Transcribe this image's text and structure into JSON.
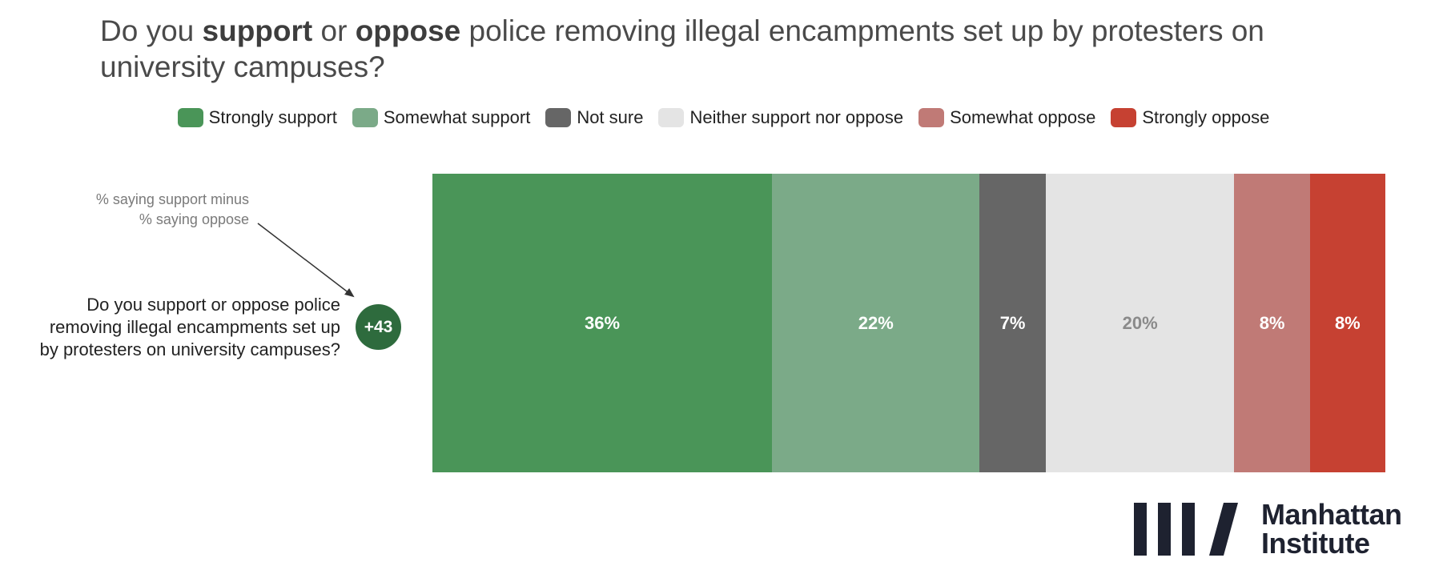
{
  "title": {
    "prefix": "Do you ",
    "bold1": "support",
    "mid": " or ",
    "bold2": "oppose",
    "suffix": " police removing illegal encampments set up by protesters on university campuses?"
  },
  "note": {
    "line1": "% saying support minus",
    "line2": "% saying oppose"
  },
  "question": {
    "line1": "Do you support or oppose police",
    "line2": "removing illegal encampments set up",
    "line3": "by protesters on university campuses?"
  },
  "net_label": "+43",
  "logo": {
    "line1": "Manhattan",
    "line2": "Institute"
  },
  "chart_data": {
    "type": "bar",
    "orientation": "horizontal-stacked",
    "categories": [
      "Do you support or oppose police removing illegal encampments set up by protesters on university campuses?"
    ],
    "series": [
      {
        "name": "Strongly support",
        "values": [
          36
        ],
        "label": "36%",
        "color": "#4a9558",
        "label_color": "#ffffff"
      },
      {
        "name": "Somewhat support",
        "values": [
          22
        ],
        "label": "22%",
        "color": "#7baa88",
        "label_color": "#ffffff"
      },
      {
        "name": "Not sure",
        "values": [
          7
        ],
        "label": "7%",
        "color": "#666666",
        "label_color": "#ffffff"
      },
      {
        "name": "Neither support nor oppose",
        "values": [
          20
        ],
        "label": "20%",
        "color": "#e4e4e4",
        "label_color": "#8a8a8a"
      },
      {
        "name": "Somewhat oppose",
        "values": [
          8
        ],
        "label": "8%",
        "color": "#c07a76",
        "label_color": "#ffffff"
      },
      {
        "name": "Strongly oppose",
        "values": [
          8
        ],
        "label": "8%",
        "color": "#c64132",
        "label_color": "#ffffff"
      }
    ],
    "net": {
      "label": "+43",
      "value": 43
    },
    "legend_position": "top",
    "grid": false
  }
}
